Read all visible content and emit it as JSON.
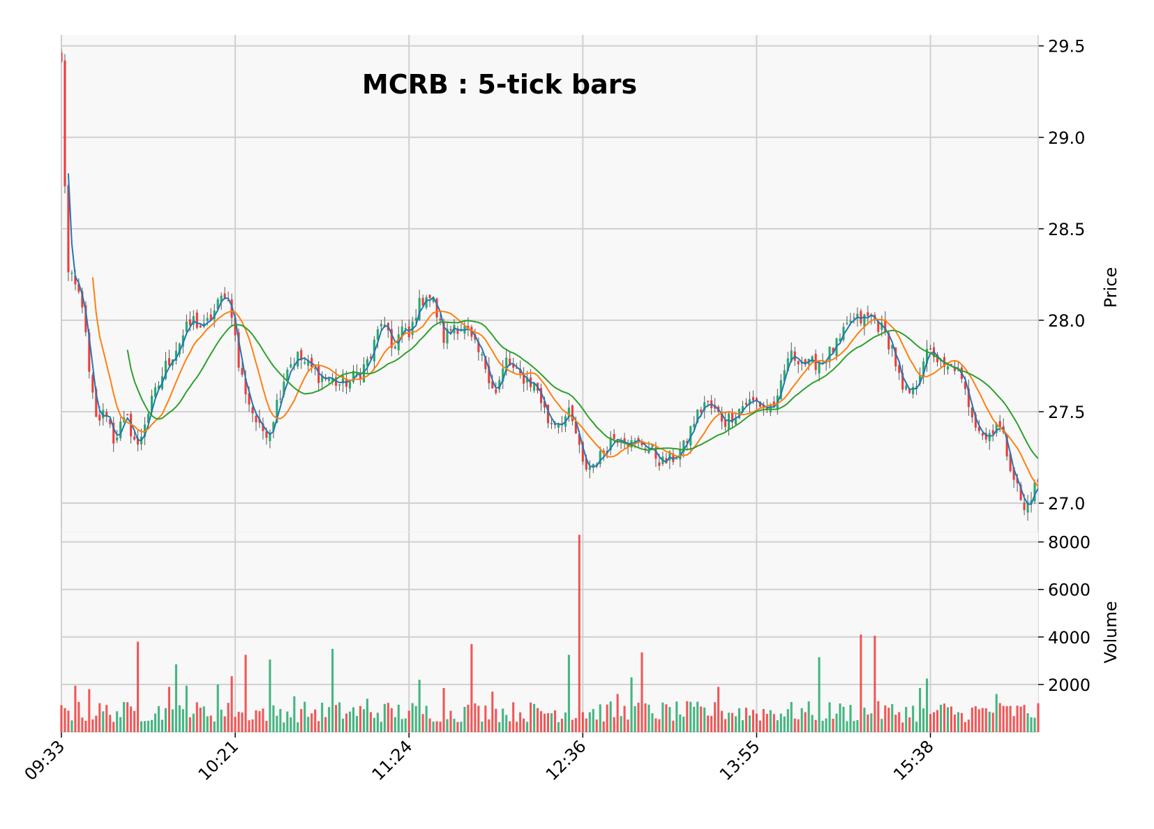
{
  "chart_data": {
    "type": "candlestick",
    "title": "MCRB : 5-tick bars",
    "price_axis": {
      "label": "Price",
      "position": "right",
      "ylim": [
        26.84,
        29.56
      ],
      "ticks": [
        "27.0",
        "27.5",
        "28.0",
        "28.5",
        "29.0",
        "29.5"
      ],
      "tick_values": [
        27.0,
        27.5,
        28.0,
        28.5,
        29.0,
        29.5
      ]
    },
    "volume_axis": {
      "label": "Volume",
      "position": "right",
      "ylim": [
        0,
        8400
      ],
      "ticks": [
        "2000",
        "4000",
        "6000",
        "8000"
      ],
      "tick_values": [
        2000,
        4000,
        6000,
        8000
      ]
    },
    "x_axis": {
      "ticks": [
        "09:33",
        "10:21",
        "11:24",
        "12:36",
        "13:55",
        "15:38"
      ],
      "tick_index": [
        0,
        50,
        100,
        150,
        200,
        250
      ]
    },
    "grid": true,
    "up_color": "#26a96c",
    "down_color": "#ef3b3b",
    "ma_colors": [
      "#1f77b4",
      "#ff7f0e",
      "#2ca02c"
    ],
    "ma_periods": [
      3,
      10,
      20
    ],
    "price_path": [
      [
        0,
        29.4
      ],
      [
        1,
        28.75
      ],
      [
        2,
        28.25
      ],
      [
        4,
        28.18
      ],
      [
        6,
        28.1
      ],
      [
        8,
        27.7
      ],
      [
        10,
        27.45
      ],
      [
        13,
        27.5
      ],
      [
        15,
        27.35
      ],
      [
        17,
        27.42
      ],
      [
        19,
        27.45
      ],
      [
        22,
        27.3
      ],
      [
        24,
        27.45
      ],
      [
        27,
        27.6
      ],
      [
        30,
        27.75
      ],
      [
        33,
        27.85
      ],
      [
        36,
        27.95
      ],
      [
        38,
        28.0
      ],
      [
        41,
        27.95
      ],
      [
        44,
        28.05
      ],
      [
        47,
        28.15
      ],
      [
        49,
        28.05
      ],
      [
        51,
        27.75
      ],
      [
        54,
        27.55
      ],
      [
        57,
        27.4
      ],
      [
        60,
        27.4
      ],
      [
        62,
        27.55
      ],
      [
        65,
        27.75
      ],
      [
        68,
        27.8
      ],
      [
        71,
        27.75
      ],
      [
        74,
        27.7
      ],
      [
        77,
        27.68
      ],
      [
        80,
        27.65
      ],
      [
        83,
        27.67
      ],
      [
        86,
        27.72
      ],
      [
        89,
        27.8
      ],
      [
        92,
        28.0
      ],
      [
        95,
        27.85
      ],
      [
        98,
        27.95
      ],
      [
        100,
        27.9
      ],
      [
        102,
        28.05
      ],
      [
        105,
        28.15
      ],
      [
        107,
        28.1
      ],
      [
        110,
        27.9
      ],
      [
        113,
        27.98
      ],
      [
        116,
        27.95
      ],
      [
        119,
        27.85
      ],
      [
        122,
        27.75
      ],
      [
        125,
        27.6
      ],
      [
        128,
        27.78
      ],
      [
        131,
        27.7
      ],
      [
        134,
        27.68
      ],
      [
        137,
        27.62
      ],
      [
        140,
        27.45
      ],
      [
        143,
        27.45
      ],
      [
        146,
        27.48
      ],
      [
        148,
        27.38
      ],
      [
        150,
        27.2
      ],
      [
        152,
        27.2
      ],
      [
        155,
        27.25
      ],
      [
        158,
        27.35
      ],
      [
        161,
        27.38
      ],
      [
        164,
        27.32
      ],
      [
        167,
        27.33
      ],
      [
        170,
        27.28
      ],
      [
        173,
        27.22
      ],
      [
        176,
        27.25
      ],
      [
        179,
        27.3
      ],
      [
        182,
        27.45
      ],
      [
        185,
        27.55
      ],
      [
        188,
        27.5
      ],
      [
        191,
        27.45
      ],
      [
        194,
        27.5
      ],
      [
        197,
        27.55
      ],
      [
        200,
        27.55
      ],
      [
        203,
        27.52
      ],
      [
        206,
        27.55
      ],
      [
        209,
        27.8
      ],
      [
        212,
        27.8
      ],
      [
        215,
        27.75
      ],
      [
        218,
        27.78
      ],
      [
        221,
        27.82
      ],
      [
        224,
        27.88
      ],
      [
        227,
        28.0
      ],
      [
        230,
        28.0
      ],
      [
        233,
        28.02
      ],
      [
        236,
        27.95
      ],
      [
        239,
        27.85
      ],
      [
        242,
        27.6
      ],
      [
        245,
        27.6
      ],
      [
        248,
        27.8
      ],
      [
        251,
        27.82
      ],
      [
        254,
        27.72
      ],
      [
        257,
        27.75
      ],
      [
        260,
        27.6
      ],
      [
        263,
        27.45
      ],
      [
        266,
        27.35
      ],
      [
        269,
        27.45
      ],
      [
        271,
        27.35
      ],
      [
        274,
        27.15
      ],
      [
        277,
        26.95
      ],
      [
        279,
        27.05
      ],
      [
        281,
        27.12
      ]
    ],
    "volume_spikes": [
      [
        2,
        900
      ],
      [
        4,
        1950
      ],
      [
        8,
        1800
      ],
      [
        22,
        3800
      ],
      [
        31,
        1900
      ],
      [
        33,
        2850
      ],
      [
        36,
        1950
      ],
      [
        45,
        2000
      ],
      [
        49,
        2350
      ],
      [
        53,
        3250
      ],
      [
        60,
        3050
      ],
      [
        67,
        1500
      ],
      [
        78,
        3500
      ],
      [
        88,
        1400
      ],
      [
        103,
        2200
      ],
      [
        110,
        1850
      ],
      [
        118,
        3700
      ],
      [
        124,
        1700
      ],
      [
        146,
        3250
      ],
      [
        149,
        8300
      ],
      [
        160,
        1600
      ],
      [
        164,
        2300
      ],
      [
        167,
        3350
      ],
      [
        189,
        1900
      ],
      [
        218,
        3150
      ],
      [
        230,
        4100
      ],
      [
        234,
        4050
      ],
      [
        247,
        1850
      ],
      [
        249,
        2250
      ],
      [
        259,
        800
      ],
      [
        269,
        1600
      ]
    ],
    "n_bars": 282
  }
}
